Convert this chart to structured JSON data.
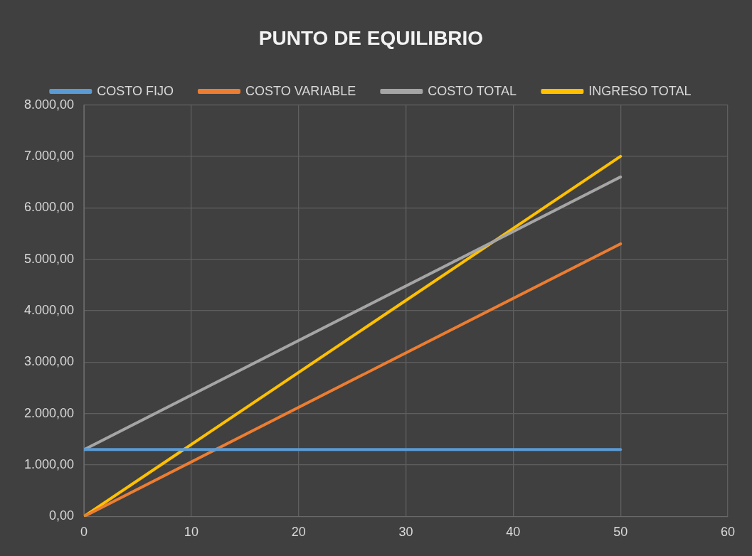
{
  "chart_data": {
    "type": "line",
    "title": "PUNTO DE EQUILIBRIO",
    "legend": "top",
    "grid": true,
    "marker": "none",
    "line_style": "solid",
    "xlim": [
      0,
      60
    ],
    "xticks": [
      0,
      10,
      20,
      30,
      40,
      50,
      60
    ],
    "ylim": [
      0,
      8000
    ],
    "yticks": [
      {
        "value": 0,
        "label": "0,00"
      },
      {
        "value": 1000,
        "label": "1.000,00"
      },
      {
        "value": 2000,
        "label": "2.000,00"
      },
      {
        "value": 3000,
        "label": "3.000,00"
      },
      {
        "value": 4000,
        "label": "4.000,00"
      },
      {
        "value": 5000,
        "label": "5.000,00"
      },
      {
        "value": 6000,
        "label": "6.000,00"
      },
      {
        "value": 7000,
        "label": "7.000,00"
      },
      {
        "value": 8000,
        "label": "8.000,00"
      }
    ],
    "x": [
      0,
      50
    ],
    "series": [
      {
        "name": "COSTO FIJO",
        "color": "#5b9bd5",
        "values": [
          1300,
          1300
        ]
      },
      {
        "name": "COSTO VARIABLE",
        "color": "#ed7d31",
        "values": [
          0,
          5300
        ]
      },
      {
        "name": "COSTO TOTAL",
        "color": "#a5a5a5",
        "values": [
          1300,
          6600
        ]
      },
      {
        "name": "INGRESO TOTAL",
        "color": "#ffc000",
        "values": [
          0,
          7000
        ]
      }
    ]
  }
}
